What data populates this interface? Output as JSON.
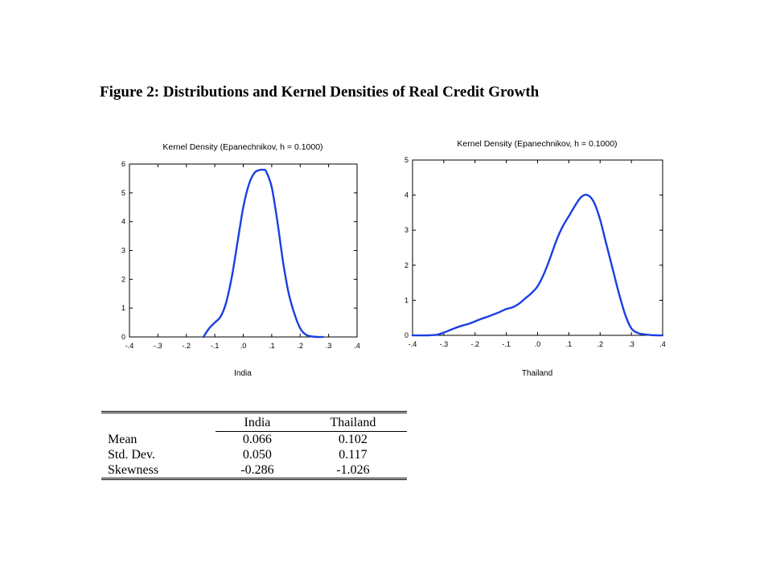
{
  "figure_title": "Figure 2: Distributions and Kernel Densities of Real Credit Growth",
  "colors": {
    "curve": "#1a3fe0",
    "frame": "#000000"
  },
  "chart_data": [
    {
      "type": "line",
      "title": "Kernel Density (Epanechnikov, h = 0.1000)",
      "xlabel": "India",
      "ylabel": "",
      "xlim": [
        -0.4,
        0.4
      ],
      "ylim": [
        0,
        6
      ],
      "xticks": [
        -0.4,
        -0.3,
        -0.2,
        -0.1,
        0.0,
        0.1,
        0.2,
        0.3,
        0.4
      ],
      "xtick_labels": [
        "-.4",
        "-.3",
        "-.2",
        "-.1",
        ".0",
        ".1",
        ".2",
        ".3",
        ".4"
      ],
      "yticks": [
        0,
        1,
        2,
        3,
        4,
        5,
        6
      ],
      "ytick_labels": [
        "0",
        "1",
        "2",
        "3",
        "4",
        "5",
        "6"
      ],
      "grid": false,
      "series": [
        {
          "x": [
            -0.14,
            -0.12,
            -0.1,
            -0.08,
            -0.06,
            -0.04,
            -0.02,
            0.0,
            0.02,
            0.04,
            0.06,
            0.07,
            0.08,
            0.1,
            0.12,
            0.14,
            0.16,
            0.18,
            0.2,
            0.22,
            0.24,
            0.26,
            0.28
          ],
          "y": [
            0.0,
            0.3,
            0.5,
            0.7,
            1.2,
            2.1,
            3.3,
            4.5,
            5.3,
            5.7,
            5.8,
            5.8,
            5.75,
            5.2,
            4.0,
            2.6,
            1.5,
            0.8,
            0.3,
            0.08,
            0.02,
            0.0,
            0.0
          ]
        }
      ]
    },
    {
      "type": "line",
      "title": "Kernel Density (Epanechnikov, h = 0.1000)",
      "xlabel": "Thailand",
      "ylabel": "",
      "xlim": [
        -0.4,
        0.4
      ],
      "ylim": [
        0,
        5
      ],
      "xticks": [
        -0.4,
        -0.3,
        -0.2,
        -0.1,
        0.0,
        0.1,
        0.2,
        0.3,
        0.4
      ],
      "xtick_labels": [
        "-.4",
        "-.3",
        "-.2",
        "-.1",
        ".0",
        ".1",
        ".2",
        ".3",
        ".4"
      ],
      "yticks": [
        0,
        1,
        2,
        3,
        4,
        5
      ],
      "ytick_labels": [
        "0",
        "1",
        "2",
        "3",
        "4",
        "5"
      ],
      "grid": false,
      "series": [
        {
          "x": [
            -0.4,
            -0.35,
            -0.32,
            -0.3,
            -0.28,
            -0.26,
            -0.24,
            -0.22,
            -0.2,
            -0.18,
            -0.16,
            -0.14,
            -0.12,
            -0.1,
            -0.08,
            -0.06,
            -0.04,
            -0.02,
            0.0,
            0.02,
            0.04,
            0.06,
            0.08,
            0.1,
            0.12,
            0.14,
            0.16,
            0.18,
            0.2,
            0.22,
            0.24,
            0.26,
            0.28,
            0.3,
            0.32,
            0.34,
            0.36,
            0.38,
            0.4
          ],
          "y": [
            0.0,
            0.0,
            0.02,
            0.08,
            0.15,
            0.22,
            0.28,
            0.33,
            0.4,
            0.47,
            0.53,
            0.6,
            0.67,
            0.75,
            0.8,
            0.9,
            1.05,
            1.2,
            1.4,
            1.75,
            2.2,
            2.7,
            3.1,
            3.4,
            3.7,
            3.95,
            4.0,
            3.8,
            3.3,
            2.6,
            1.9,
            1.2,
            0.6,
            0.2,
            0.07,
            0.03,
            0.01,
            0.0,
            0.0
          ]
        }
      ]
    },
    {
      "type": "table",
      "columns": [
        "",
        "India",
        "Thailand"
      ],
      "rows": [
        [
          "Mean",
          "0.066",
          "0.102"
        ],
        [
          "Std. Dev.",
          "0.050",
          "0.117"
        ],
        [
          "Skewness",
          "-0.286",
          "-1.026"
        ]
      ]
    }
  ]
}
